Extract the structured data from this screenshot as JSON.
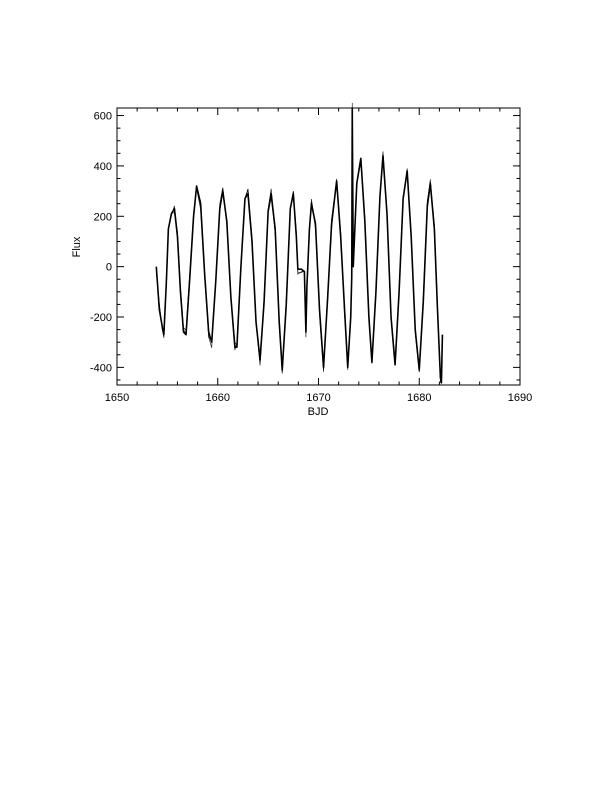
{
  "chart_data": {
    "type": "line",
    "xlabel": "BJD",
    "ylabel": "Flux",
    "xlim": [
      1650,
      1690
    ],
    "ylim": [
      -470,
      630
    ],
    "xticks": [
      1650,
      1660,
      1670,
      1680,
      1690
    ],
    "xtick_labels": [
      "1650",
      "1660",
      "1670",
      "1680",
      "1690"
    ],
    "yticks": [
      -400,
      -200,
      0,
      200,
      400,
      600
    ],
    "ytick_labels": [
      "-400",
      "-200",
      "0",
      "200",
      "400",
      "600"
    ],
    "x_minor_step": 2,
    "y_minor_step": 50,
    "grid": false,
    "legend": "none",
    "line_color": "#000000",
    "series": [
      {
        "points": [
          [
            1653.9,
            0
          ],
          [
            1654.2,
            -170
          ],
          [
            1654.5,
            -240
          ],
          [
            1654.65,
            -270
          ],
          [
            1654.9,
            -60
          ],
          [
            1655.1,
            150
          ],
          [
            1655.4,
            210
          ],
          [
            1655.7,
            230
          ],
          [
            1656.0,
            120
          ],
          [
            1656.3,
            -100
          ],
          [
            1656.6,
            -260
          ],
          [
            1656.85,
            -270
          ],
          [
            1657.2,
            -60
          ],
          [
            1657.6,
            200
          ],
          [
            1657.9,
            320
          ],
          [
            1658.3,
            250
          ],
          [
            1658.7,
            -30
          ],
          [
            1659.1,
            -260
          ],
          [
            1659.4,
            -300
          ],
          [
            1659.8,
            -60
          ],
          [
            1660.2,
            230
          ],
          [
            1660.5,
            300
          ],
          [
            1660.9,
            180
          ],
          [
            1661.3,
            -120
          ],
          [
            1661.7,
            -320
          ],
          [
            1661.9,
            -320
          ],
          [
            1662.3,
            0
          ],
          [
            1662.7,
            270
          ],
          [
            1663.0,
            290
          ],
          [
            1663.4,
            100
          ],
          [
            1663.8,
            -220
          ],
          [
            1664.2,
            -370
          ],
          [
            1664.6,
            -140
          ],
          [
            1665.0,
            220
          ],
          [
            1665.3,
            290
          ],
          [
            1665.7,
            150
          ],
          [
            1666.1,
            -220
          ],
          [
            1666.4,
            -410
          ],
          [
            1666.8,
            -150
          ],
          [
            1667.2,
            230
          ],
          [
            1667.5,
            290
          ],
          [
            1667.8,
            120
          ],
          [
            1667.95,
            -10
          ],
          [
            1668.3,
            -10
          ],
          [
            1668.6,
            -20
          ],
          [
            1668.75,
            -260
          ],
          [
            1668.85,
            -80
          ],
          [
            1669.1,
            150
          ],
          [
            1669.3,
            250
          ],
          [
            1669.7,
            170
          ],
          [
            1670.1,
            -170
          ],
          [
            1670.5,
            -400
          ],
          [
            1670.9,
            -130
          ],
          [
            1671.3,
            170
          ],
          [
            1671.8,
            340
          ],
          [
            1672.2,
            120
          ],
          [
            1672.6,
            -180
          ],
          [
            1672.9,
            -400
          ],
          [
            1673.2,
            -200
          ],
          [
            1673.3,
            -40
          ],
          [
            1673.35,
            630
          ],
          [
            1673.45,
            0
          ],
          [
            1673.8,
            330
          ],
          [
            1674.2,
            430
          ],
          [
            1674.6,
            180
          ],
          [
            1675.0,
            -200
          ],
          [
            1675.3,
            -380
          ],
          [
            1675.7,
            -100
          ],
          [
            1676.1,
            280
          ],
          [
            1676.4,
            440
          ],
          [
            1676.8,
            210
          ],
          [
            1677.2,
            -200
          ],
          [
            1677.6,
            -390
          ],
          [
            1678.0,
            -100
          ],
          [
            1678.4,
            270
          ],
          [
            1678.8,
            380
          ],
          [
            1679.2,
            120
          ],
          [
            1679.6,
            -250
          ],
          [
            1680.0,
            -410
          ],
          [
            1680.4,
            -140
          ],
          [
            1680.8,
            240
          ],
          [
            1681.1,
            330
          ],
          [
            1681.5,
            150
          ],
          [
            1681.8,
            -160
          ],
          [
            1682.1,
            -440
          ],
          [
            1682.2,
            -460
          ],
          [
            1682.3,
            -270
          ]
        ]
      }
    ]
  }
}
